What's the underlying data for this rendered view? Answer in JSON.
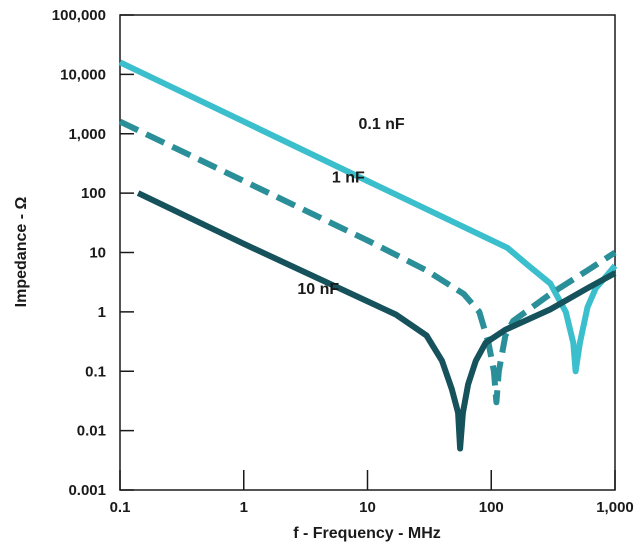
{
  "chart_data": {
    "type": "line",
    "title": "",
    "xlabel": "f - Frequency - MHz",
    "ylabel": "Impedance - Ω",
    "x_scale": "log",
    "y_scale": "log",
    "xlim": [
      0.1,
      1000
    ],
    "ylim": [
      0.001,
      100000
    ],
    "grid": false,
    "x_ticks": [
      {
        "value": 0.1,
        "label": "0.1"
      },
      {
        "value": 1,
        "label": "1"
      },
      {
        "value": 10,
        "label": "10"
      },
      {
        "value": 100,
        "label": "100"
      },
      {
        "value": 1000,
        "label": "1,000"
      }
    ],
    "y_ticks": [
      {
        "value": 0.001,
        "label": "0.001"
      },
      {
        "value": 0.01,
        "label": "0.01"
      },
      {
        "value": 0.1,
        "label": "0.1"
      },
      {
        "value": 1,
        "label": "1"
      },
      {
        "value": 10,
        "label": "10"
      },
      {
        "value": 100,
        "label": "100"
      },
      {
        "value": 1000,
        "label": "1,000"
      },
      {
        "value": 10000,
        "label": "10,000"
      },
      {
        "value": 100000,
        "label": "100,000"
      }
    ],
    "series": [
      {
        "name": "0.1 nF",
        "color": "#3bbfcc",
        "dash": "solid",
        "label_at": [
          13,
          1200
        ],
        "points": [
          [
            0.1,
            16000
          ],
          [
            1,
            1600
          ],
          [
            10,
            160
          ],
          [
            135,
            12
          ],
          [
            200,
            6
          ],
          [
            300,
            3
          ],
          [
            400,
            1
          ],
          [
            460,
            0.3
          ],
          [
            480,
            0.1
          ],
          [
            520,
            0.3
          ],
          [
            600,
            1.2
          ],
          [
            700,
            2.5
          ],
          [
            850,
            4
          ],
          [
            1000,
            6
          ]
        ]
      },
      {
        "name": "1 nF",
        "color": "#2a8f98",
        "dash": "dashed",
        "label_at": [
          7,
          150
        ],
        "points": [
          [
            0.1,
            1600
          ],
          [
            1,
            160
          ],
          [
            10,
            16
          ],
          [
            30,
            5
          ],
          [
            60,
            2
          ],
          [
            80,
            1
          ],
          [
            95,
            0.3
          ],
          [
            105,
            0.1
          ],
          [
            110,
            0.03
          ],
          [
            115,
            0.1
          ],
          [
            130,
            0.4
          ],
          [
            150,
            0.7
          ],
          [
            300,
            2
          ],
          [
            600,
            5
          ],
          [
            1000,
            10
          ]
        ]
      },
      {
        "name": "10 nF",
        "color": "#15525c",
        "dash": "solid",
        "label_at": [
          4,
          2
        ],
        "points": [
          [
            0.14,
            100
          ],
          [
            1,
            14
          ],
          [
            17,
            0.9
          ],
          [
            30,
            0.4
          ],
          [
            40,
            0.15
          ],
          [
            48,
            0.05
          ],
          [
            54,
            0.02
          ],
          [
            56,
            0.005
          ],
          [
            59,
            0.02
          ],
          [
            65,
            0.06
          ],
          [
            75,
            0.15
          ],
          [
            90,
            0.3
          ],
          [
            130,
            0.5
          ],
          [
            300,
            1.1
          ],
          [
            600,
            2.5
          ],
          [
            1000,
            4.5
          ]
        ]
      }
    ]
  }
}
